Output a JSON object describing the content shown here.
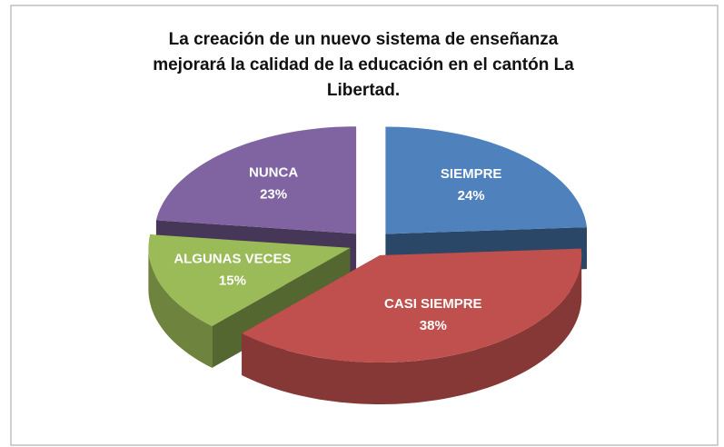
{
  "chart_data": {
    "type": "pie3d",
    "title": "La creación de un nuevo sistema de enseñanza mejorará la calidad de la educación en el cantón La Libertad.",
    "categories": [
      "SIEMPRE",
      "CASI SIEMPRE",
      "ALGUNAS VECES",
      "NUNCA"
    ],
    "values": [
      24,
      38,
      15,
      23
    ],
    "value_labels": [
      "24%",
      "38%",
      "15%",
      "23%"
    ],
    "colors": [
      "#4f81bd",
      "#c0504d",
      "#9bbb59",
      "#8064a2"
    ]
  }
}
